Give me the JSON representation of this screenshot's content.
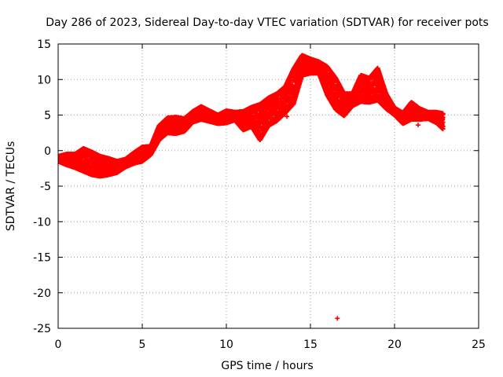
{
  "chart_data": {
    "type": "scatter",
    "title": "Day 286 of 2023, Sidereal Day-to-day VTEC variation (SDTVAR) for receiver pots",
    "xlabel": "GPS time / hours",
    "ylabel": "SDTVAR / TECUs",
    "xlim": [
      0,
      25
    ],
    "ylim": [
      -25,
      15
    ],
    "x_ticks": [
      0,
      5,
      10,
      15,
      20,
      25
    ],
    "y_ticks": [
      -25,
      -20,
      -15,
      -10,
      -5,
      0,
      5,
      10,
      15
    ],
    "x_tick_labels": [
      "0",
      "5",
      "10",
      "15",
      "20",
      "25"
    ],
    "y_tick_labels": [
      "-25",
      "-20",
      "-15",
      "-10",
      "-5",
      "0",
      "5",
      "10",
      "15"
    ],
    "grid": true,
    "legend": "none",
    "series": [
      {
        "name": "SDTVAR",
        "color": "#ff0000",
        "marker": "plus",
        "band": {
          "x": [
            0.0,
            0.5,
            1.0,
            1.5,
            2.0,
            2.5,
            3.0,
            3.5,
            4.0,
            4.5,
            5.0,
            5.5,
            6.0,
            6.5,
            7.0,
            7.5,
            8.0,
            8.5,
            9.0,
            9.5,
            10.0,
            10.5,
            11.0,
            11.5,
            12.0,
            12.5,
            13.0,
            13.5,
            14.0,
            14.5,
            15.0,
            15.5,
            16.0,
            16.5,
            17.0,
            17.5,
            18.0,
            18.5,
            19.0,
            19.5,
            20.0,
            20.5,
            21.0,
            21.5,
            22.0,
            22.5,
            22.9
          ],
          "upper": [
            -0.8,
            -0.5,
            -0.5,
            0.3,
            -0.2,
            -0.8,
            -1.1,
            -1.5,
            -1.2,
            -0.3,
            0.5,
            0.6,
            3.5,
            4.6,
            4.7,
            4.5,
            5.5,
            6.2,
            5.6,
            5.0,
            5.6,
            5.4,
            5.5,
            6.1,
            6.5,
            7.4,
            8.0,
            9.0,
            11.5,
            13.4,
            12.9,
            12.5,
            11.8,
            10.2,
            8.0,
            8.0,
            10.6,
            10.2,
            11.6,
            8.0,
            6.0,
            5.3,
            6.8,
            5.9,
            5.4,
            5.4,
            5.2
          ],
          "lower": [
            -1.5,
            -2.0,
            -2.4,
            -2.9,
            -3.4,
            -3.6,
            -3.4,
            -3.1,
            -2.3,
            -1.8,
            -1.5,
            -0.6,
            1.5,
            2.5,
            2.4,
            2.7,
            4.0,
            4.4,
            4.1,
            3.8,
            3.9,
            4.3,
            2.9,
            3.4,
            1.5,
            3.5,
            4.2,
            5.3,
            6.6,
            10.6,
            10.9,
            10.9,
            7.8,
            5.8,
            4.9,
            6.3,
            6.9,
            6.8,
            7.1,
            5.9,
            5.0,
            3.8,
            4.4,
            4.4,
            4.5,
            3.9,
            3.0
          ]
        },
        "outliers": [
          {
            "x": 16.6,
            "y": -23.6
          },
          {
            "x": 21.4,
            "y": 3.6
          },
          {
            "x": 13.6,
            "y": 4.8
          }
        ]
      }
    ]
  }
}
